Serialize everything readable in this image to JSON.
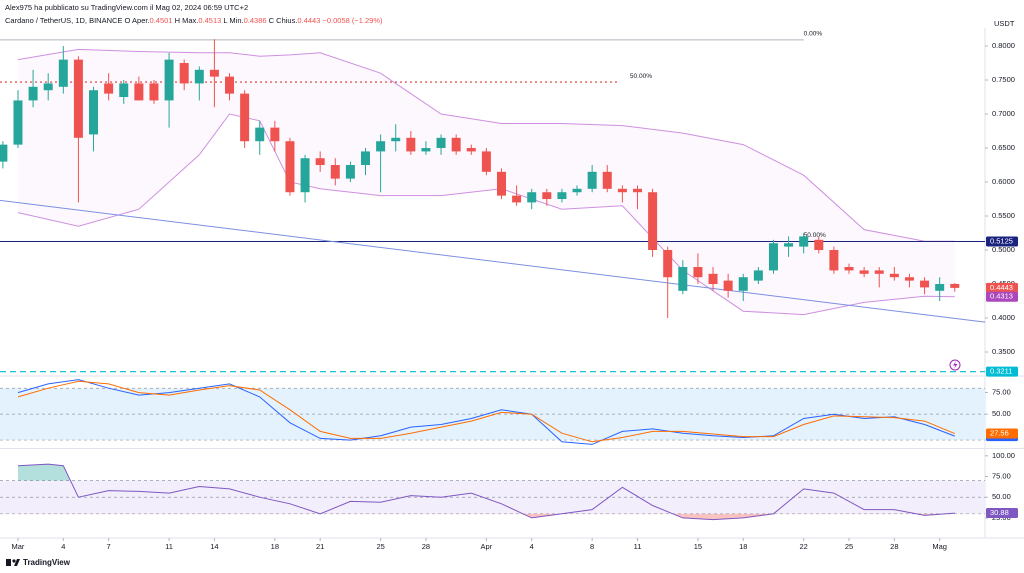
{
  "header": {
    "author": "Alex975 ha pubblicato su TradingView.com il Mag 02, 2024 06:59 UTC+2",
    "symbol": "Cardano / TetherUS, 1D, BINANCE",
    "ohlc": [
      {
        "key": "O",
        "label": "Aper.",
        "value": "0.4501"
      },
      {
        "key": "H",
        "label": "Max.",
        "value": "0.4513"
      },
      {
        "key": "L",
        "label": "Min.",
        "value": "0.4386"
      },
      {
        "key": "C",
        "label": "Chius.",
        "value": "0.4443"
      }
    ],
    "change": "−0.0058 (−1.29%)"
  },
  "currency": "USDT",
  "footer": "TradingView",
  "chart_data": [
    {
      "type": "candlestick",
      "x": [
        -1,
        0,
        1,
        2,
        3,
        4,
        5,
        6,
        7,
        8,
        9,
        10,
        11,
        12,
        13,
        14,
        15,
        16,
        17,
        18,
        19,
        20,
        21,
        22,
        23,
        24,
        25,
        26,
        27,
        28,
        29,
        30,
        31,
        32,
        33,
        34,
        35,
        36,
        37,
        38,
        39,
        40,
        41,
        42,
        43,
        44,
        45,
        46,
        47,
        48,
        49,
        50,
        51,
        52,
        53,
        54,
        55,
        56,
        57,
        58,
        59,
        60,
        61,
        62
      ],
      "open": [
        0.63,
        0.655,
        0.72,
        0.735,
        0.74,
        0.78,
        0.67,
        0.745,
        0.725,
        0.745,
        0.745,
        0.72,
        0.775,
        0.745,
        0.765,
        0.755,
        0.73,
        0.66,
        0.68,
        0.66,
        0.585,
        0.635,
        0.625,
        0.605,
        0.625,
        0.645,
        0.66,
        0.665,
        0.645,
        0.65,
        0.665,
        0.65,
        0.645,
        0.615,
        0.58,
        0.57,
        0.585,
        0.575,
        0.585,
        0.59,
        0.615,
        0.59,
        0.59,
        0.585,
        0.5,
        0.44,
        0.475,
        0.465,
        0.455,
        0.44,
        0.455,
        0.47,
        0.505,
        0.505,
        0.515,
        0.5,
        0.475,
        0.47,
        0.47,
        0.465,
        0.46,
        0.455,
        0.44,
        0.4501
      ],
      "high": [
        0.66,
        0.735,
        0.765,
        0.76,
        0.8,
        0.785,
        0.74,
        0.76,
        0.75,
        0.755,
        0.75,
        0.79,
        0.78,
        0.77,
        0.81,
        0.76,
        0.735,
        0.69,
        0.69,
        0.665,
        0.64,
        0.645,
        0.635,
        0.63,
        0.65,
        0.67,
        0.685,
        0.675,
        0.66,
        0.67,
        0.67,
        0.655,
        0.65,
        0.62,
        0.595,
        0.59,
        0.59,
        0.59,
        0.595,
        0.625,
        0.625,
        0.595,
        0.595,
        0.59,
        0.505,
        0.485,
        0.495,
        0.475,
        0.465,
        0.465,
        0.475,
        0.515,
        0.52,
        0.525,
        0.52,
        0.505,
        0.48,
        0.475,
        0.475,
        0.475,
        0.465,
        0.46,
        0.46,
        0.4513
      ],
      "low": [
        0.62,
        0.65,
        0.71,
        0.72,
        0.73,
        0.57,
        0.645,
        0.72,
        0.715,
        0.72,
        0.715,
        0.68,
        0.735,
        0.72,
        0.71,
        0.72,
        0.65,
        0.64,
        0.645,
        0.58,
        0.57,
        0.615,
        0.595,
        0.6,
        0.61,
        0.585,
        0.645,
        0.64,
        0.64,
        0.64,
        0.64,
        0.64,
        0.61,
        0.575,
        0.565,
        0.56,
        0.565,
        0.57,
        0.58,
        0.585,
        0.585,
        0.57,
        0.56,
        0.49,
        0.4,
        0.435,
        0.45,
        0.44,
        0.43,
        0.425,
        0.45,
        0.465,
        0.49,
        0.495,
        0.495,
        0.465,
        0.465,
        0.46,
        0.445,
        0.455,
        0.445,
        0.435,
        0.425,
        0.4386
      ],
      "close": [
        0.655,
        0.72,
        0.74,
        0.745,
        0.78,
        0.665,
        0.735,
        0.73,
        0.745,
        0.72,
        0.72,
        0.78,
        0.745,
        0.765,
        0.755,
        0.73,
        0.66,
        0.68,
        0.66,
        0.585,
        0.635,
        0.625,
        0.605,
        0.625,
        0.645,
        0.66,
        0.665,
        0.645,
        0.65,
        0.665,
        0.645,
        0.645,
        0.615,
        0.58,
        0.57,
        0.585,
        0.575,
        0.585,
        0.59,
        0.615,
        0.59,
        0.585,
        0.585,
        0.5,
        0.46,
        0.475,
        0.46,
        0.45,
        0.44,
        0.46,
        0.47,
        0.51,
        0.51,
        0.52,
        0.5,
        0.47,
        0.47,
        0.465,
        0.465,
        0.46,
        0.455,
        0.445,
        0.45,
        0.4443
      ],
      "up_color": "#26a69a",
      "down_color": "#ef5350",
      "xlim": [
        -1.19,
        64
      ],
      "ylim": [
        0.3162,
        0.8265
      ],
      "xticks": [
        {
          "value": 0,
          "label": "Mar"
        },
        {
          "value": 3,
          "label": "4"
        },
        {
          "value": 6,
          "label": "7"
        },
        {
          "value": 10,
          "label": "11"
        },
        {
          "value": 13,
          "label": "14"
        },
        {
          "value": 17,
          "label": "18"
        },
        {
          "value": 20,
          "label": "21"
        },
        {
          "value": 24,
          "label": "25"
        },
        {
          "value": 27,
          "label": "28"
        },
        {
          "value": 31,
          "label": "Apr"
        },
        {
          "value": 34,
          "label": "4"
        },
        {
          "value": 38,
          "label": "8"
        },
        {
          "value": 41,
          "label": "11"
        },
        {
          "value": 45,
          "label": "15"
        },
        {
          "value": 48,
          "label": "18"
        },
        {
          "value": 52,
          "label": "22"
        },
        {
          "value": 55,
          "label": "25"
        },
        {
          "value": 58,
          "label": "28"
        },
        {
          "value": 61,
          "label": "Mag"
        }
      ],
      "yticks": [
        {
          "value": 0.8,
          "label": "0.8000"
        },
        {
          "value": 0.75,
          "label": "0.7500"
        },
        {
          "value": 0.7,
          "label": "0.7000"
        },
        {
          "value": 0.65,
          "label": "0.6500"
        },
        {
          "value": 0.6,
          "label": "0.6000"
        },
        {
          "value": 0.55,
          "label": "0.5500"
        },
        {
          "value": 0.5,
          "label": "0.5000"
        },
        {
          "value": 0.45,
          "label": "0.4500"
        },
        {
          "value": 0.4,
          "label": "0.4000"
        },
        {
          "value": 0.35,
          "label": "0.3500"
        }
      ],
      "bands": {
        "color": "#cf8fe0",
        "x": [
          0,
          4,
          8,
          12,
          14,
          16,
          18,
          20,
          24,
          28,
          32,
          36,
          40,
          44,
          48,
          52,
          56,
          60,
          62
        ],
        "upper": [
          0.78,
          0.795,
          0.792,
          0.79,
          0.79,
          0.785,
          0.787,
          0.79,
          0.76,
          0.7,
          0.686,
          0.686,
          0.683,
          0.672,
          0.655,
          0.61,
          0.53,
          0.513,
          0.513
        ],
        "lower": [
          0.555,
          0.535,
          0.56,
          0.64,
          0.7,
          0.69,
          0.6,
          0.59,
          0.58,
          0.58,
          0.59,
          0.56,
          0.565,
          0.47,
          0.41,
          0.405,
          0.423,
          0.432,
          0.4313
        ]
      },
      "levels": [
        {
          "value": 0.809,
          "label": "0.00%",
          "color": "#b2b5be",
          "from": -1.19,
          "to": 52,
          "label_at": 52
        },
        {
          "value": 0.747,
          "label": "50.00%",
          "color": "#e53935",
          "dash": "2 3",
          "from": -1.19,
          "to": 39.8,
          "label_at": 40.5
        },
        {
          "value": 0.5125,
          "label": "50.00%",
          "color": "#1a237e",
          "from": -1.19,
          "to": 64,
          "label_at": 52
        },
        {
          "value": 0.3211,
          "color": "#00bcd4",
          "dash": "6 4",
          "from": -1.19,
          "to": 64
        }
      ],
      "trendline": {
        "x": [
          -1.19,
          64
        ],
        "y": [
          0.573,
          0.394
        ],
        "color": "#7b8fe0"
      },
      "price_labels": [
        {
          "value": 0.5125,
          "color": "#1a237e"
        },
        {
          "value": 0.4443,
          "color": "#ef5350"
        },
        {
          "value": 0.4313,
          "color": "#ab47bc"
        },
        {
          "value": 0.3211,
          "color": "#00bcd4"
        }
      ]
    },
    {
      "type": "line",
      "x": [
        0,
        2,
        4,
        6,
        8,
        10,
        12,
        14,
        16,
        18,
        20,
        22,
        24,
        26,
        28,
        30,
        32,
        34,
        36,
        38,
        40,
        42,
        44,
        46,
        48,
        50,
        52,
        54,
        56,
        58,
        60,
        62
      ],
      "series": [
        {
          "color": "#2962ff",
          "values": [
            75,
            85,
            90,
            80,
            72,
            75,
            80,
            85,
            70,
            40,
            22,
            20,
            25,
            35,
            38,
            45,
            55,
            50,
            18,
            15,
            30,
            33,
            28,
            25,
            23,
            25,
            45,
            50,
            45,
            47,
            38,
            24.62
          ]
        },
        {
          "color": "#ff6d00",
          "values": [
            70,
            80,
            88,
            85,
            75,
            72,
            78,
            83,
            78,
            55,
            30,
            22,
            22,
            28,
            35,
            42,
            52,
            50,
            28,
            18,
            23,
            30,
            30,
            27,
            24,
            24,
            38,
            48,
            47,
            46,
            42,
            27.56
          ]
        }
      ],
      "ylim": [
        12,
        93
      ],
      "yticks": [
        {
          "value": 75,
          "label": "75.00"
        },
        {
          "value": 50,
          "label": "50.00"
        }
      ],
      "hlines": [
        20,
        50,
        80
      ],
      "band": [
        20,
        80
      ],
      "band_color": "#e3f2fd"
    },
    {
      "type": "line",
      "x": [
        0,
        2,
        3,
        4,
        6,
        8,
        10,
        12,
        14,
        16,
        18,
        20,
        22,
        24,
        26,
        28,
        30,
        32,
        34,
        36,
        38,
        40,
        42,
        44,
        46,
        48,
        50,
        52,
        54,
        56,
        58,
        60,
        62
      ],
      "series": [
        {
          "color": "#7e57c2",
          "values": [
            88,
            90,
            88,
            50,
            58,
            57,
            55,
            63,
            60,
            50,
            42,
            30,
            45,
            44,
            52,
            50,
            55,
            42,
            25,
            30,
            35,
            62,
            40,
            25,
            23,
            25,
            30,
            60,
            55,
            35,
            35,
            28,
            30.88
          ]
        }
      ],
      "ylim": [
        4.4,
        107
      ],
      "yticks": [
        {
          "value": 100,
          "label": "100.00"
        },
        {
          "value": 75,
          "label": "75.00"
        },
        {
          "value": 50,
          "label": "50.00"
        },
        {
          "value": 25,
          "label": "25.00"
        }
      ],
      "hlines": [
        30,
        50,
        70
      ],
      "band": [
        30,
        70
      ],
      "band_color": "#f3eefb",
      "over_color": "#26a69a",
      "under_color": "#ef5350"
    }
  ]
}
